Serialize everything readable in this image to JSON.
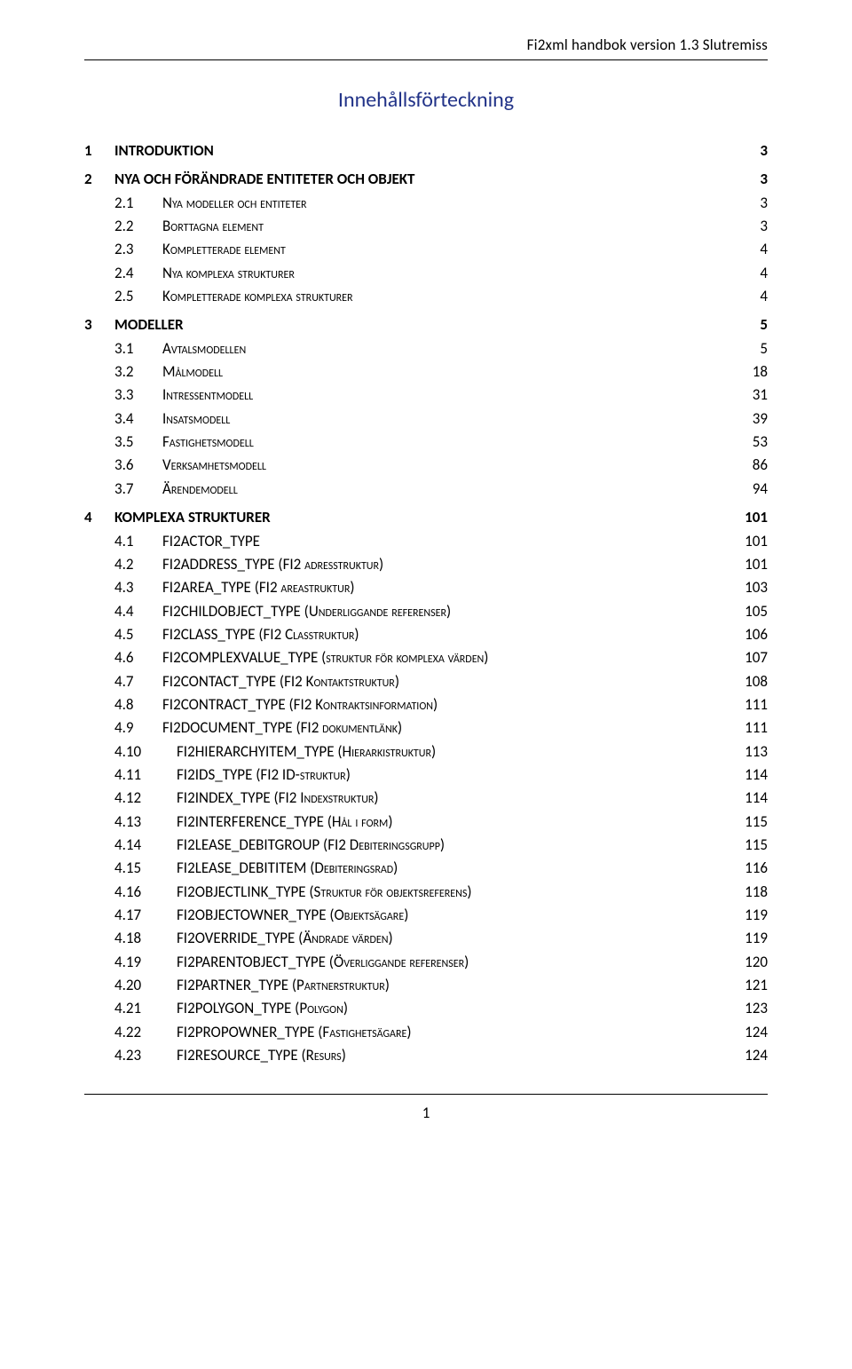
{
  "header": "Fi2xml handbok version 1.3 Slutremiss",
  "title": "Innehållsförteckning",
  "page_number": "1",
  "colors": {
    "title_color": "#223388",
    "text_color": "#000000",
    "background": "#ffffff",
    "rule_color": "#000000"
  },
  "typography": {
    "body_font": "Calibri",
    "body_size_pt": 12,
    "title_size_pt": 17
  },
  "toc": [
    {
      "level": 1,
      "num": "1",
      "label": "INTRODUKTION",
      "page": "3"
    },
    {
      "level": 1,
      "num": "2",
      "label": "NYA OCH FÖRÄNDRADE ENTITETER OCH OBJEKT",
      "page": "3"
    },
    {
      "level": 2,
      "num": "2.1",
      "label": "Nya modeller och entiteter",
      "page": "3"
    },
    {
      "level": 2,
      "num": "2.2",
      "label": "Borttagna element",
      "page": "3"
    },
    {
      "level": 2,
      "num": "2.3",
      "label": "Kompletterade element",
      "page": "4"
    },
    {
      "level": 2,
      "num": "2.4",
      "label": "Nya komplexa strukturer",
      "page": "4"
    },
    {
      "level": 2,
      "num": "2.5",
      "label": "Kompletterade komplexa strukturer",
      "page": "4"
    },
    {
      "level": 1,
      "num": "3",
      "label": "MODELLER",
      "page": "5"
    },
    {
      "level": 2,
      "num": "3.1",
      "label": "Avtalsmodellen",
      "page": "5"
    },
    {
      "level": 2,
      "num": "3.2",
      "label": "Målmodell",
      "page": "18"
    },
    {
      "level": 2,
      "num": "3.3",
      "label": "Intressentmodell",
      "page": "31"
    },
    {
      "level": 2,
      "num": "3.4",
      "label": "Insatsmodell",
      "page": "39"
    },
    {
      "level": 2,
      "num": "3.5",
      "label": "Fastighetsmodell",
      "page": "53"
    },
    {
      "level": 2,
      "num": "3.6",
      "label": "Verksamhetsmodell",
      "page": "86"
    },
    {
      "level": 2,
      "num": "3.7",
      "label": "Ärendemodell",
      "page": "94"
    },
    {
      "level": 1,
      "num": "4",
      "label": "KOMPLEXA STRUKTURER",
      "page": "101"
    },
    {
      "level": 2,
      "num": "4.1",
      "label_html": "<span class='norm'>FI2ACTOR_TYPE</span>",
      "page": "101"
    },
    {
      "level": 2,
      "num": "4.2",
      "label_html": "<span class='norm'>FI2ADDRESS_TYPE (FI2</span> <span class='sc'>adresstruktur</span><span class='norm'>)</span>",
      "page": "101"
    },
    {
      "level": 2,
      "num": "4.3",
      "label_html": "<span class='norm'>FI2AREA_TYPE (FI2</span> <span class='sc'>areastruktur</span><span class='norm'>)</span>",
      "page": "103"
    },
    {
      "level": 2,
      "num": "4.4",
      "label_html": "<span class='norm'>FI2CHILDOBJECT_TYPE (</span><span class='sc'>Underliggande referenser</span><span class='norm'>)</span>",
      "page": "105"
    },
    {
      "level": 2,
      "num": "4.5",
      "label_html": "<span class='norm'>FI2CLASS_TYPE (FI2 </span><span class='sc'>Classtruktur</span><span class='norm'>)</span>",
      "page": "106"
    },
    {
      "level": 2,
      "num": "4.6",
      "label_html": "<span class='norm'>FI2COMPLEXVALUE_TYPE (</span><span class='sc'>struktur för komplexa värden</span><span class='norm'>)</span>",
      "page": "107"
    },
    {
      "level": 2,
      "num": "4.7",
      "label_html": "<span class='norm'>FI2CONTACT_TYPE (FI2 </span><span class='sc'>Kontaktstruktur</span><span class='norm'>)</span>",
      "page": "108"
    },
    {
      "level": 2,
      "num": "4.8",
      "label_html": "<span class='norm'>FI2CONTRACT_TYPE (FI2 </span><span class='sc'>Kontraktsinformation</span><span class='norm'>)</span>",
      "page": "111"
    },
    {
      "level": 2,
      "num": "4.9",
      "label_html": "<span class='norm'>FI2DOCUMENT_TYPE (FI2 </span><span class='sc'>dokumentlänk</span><span class='norm'>)</span>",
      "page": "111"
    },
    {
      "level": 3,
      "num": "4.10",
      "label_html": "<span class='norm'>FI2HIERARCHYITEM_TYPE (</span><span class='sc'>Hierarkistruktur</span><span class='norm'>)</span>",
      "page": "113"
    },
    {
      "level": 3,
      "num": "4.11",
      "label_html": "<span class='norm'>FI2IDS_TYPE (FI2 ID-</span><span class='sc'>struktur</span><span class='norm'>)</span>",
      "page": "114"
    },
    {
      "level": 3,
      "num": "4.12",
      "label_html": "<span class='norm'>FI2INDEX_TYPE (FI2 </span><span class='sc'>Indexstruktur</span><span class='norm'>)</span>",
      "page": "114"
    },
    {
      "level": 3,
      "num": "4.13",
      "label_html": "<span class='norm'>FI2INTERFERENCE_TYPE (</span><span class='sc'>Hål i form</span><span class='norm'>)</span>",
      "page": "115"
    },
    {
      "level": 3,
      "num": "4.14",
      "label_html": "<span class='norm'>FI2LEASE_DEBITGROUP (FI2 </span><span class='sc'>Debiteringsgrupp</span><span class='norm'>)</span>",
      "page": "115"
    },
    {
      "level": 3,
      "num": "4.15",
      "label_html": "<span class='norm'>FI2LEASE_DEBITITEM (</span><span class='sc'>Debiteringsrad</span><span class='norm'>)</span>",
      "page": "116"
    },
    {
      "level": 3,
      "num": "4.16",
      "label_html": "<span class='norm'>FI2OBJECTLINK_TYPE (</span><span class='sc'>Struktur för objektsreferens</span><span class='norm'>)</span>",
      "page": "118"
    },
    {
      "level": 3,
      "num": "4.17",
      "label_html": "<span class='norm'>FI2OBJECTOWNER_TYPE (</span><span class='sc'>Objektsägare</span><span class='norm'>)</span>",
      "page": "119"
    },
    {
      "level": 3,
      "num": "4.18",
      "label_html": "<span class='norm'>FI2OVERRIDE_TYPE (</span><span class='sc'>Ändrade värden</span><span class='norm'>)</span>",
      "page": "119"
    },
    {
      "level": 3,
      "num": "4.19",
      "label_html": "<span class='norm'>FI2PARENTOBJECT_TYPE (</span><span class='sc'>Överliggande referenser</span><span class='norm'>)</span>",
      "page": "120"
    },
    {
      "level": 3,
      "num": "4.20",
      "label_html": "<span class='norm'>FI2PARTNER_TYPE (</span><span class='sc'>Partnerstruktur</span><span class='norm'>)</span>",
      "page": "121"
    },
    {
      "level": 3,
      "num": "4.21",
      "label_html": "<span class='norm'>FI2POLYGON_TYPE (</span><span class='sc'>Polygon</span><span class='norm'>)</span>",
      "page": "123"
    },
    {
      "level": 3,
      "num": "4.22",
      "label_html": "<span class='norm'>FI2PROPOWNER_TYPE (</span><span class='sc'>Fastighetsägare</span><span class='norm'>)</span>",
      "page": "124"
    },
    {
      "level": 3,
      "num": "4.23",
      "label_html": "<span class='norm'>FI2RESOURCE_TYPE (</span><span class='sc'>Resurs</span><span class='norm'>)</span>",
      "page": "124"
    }
  ]
}
